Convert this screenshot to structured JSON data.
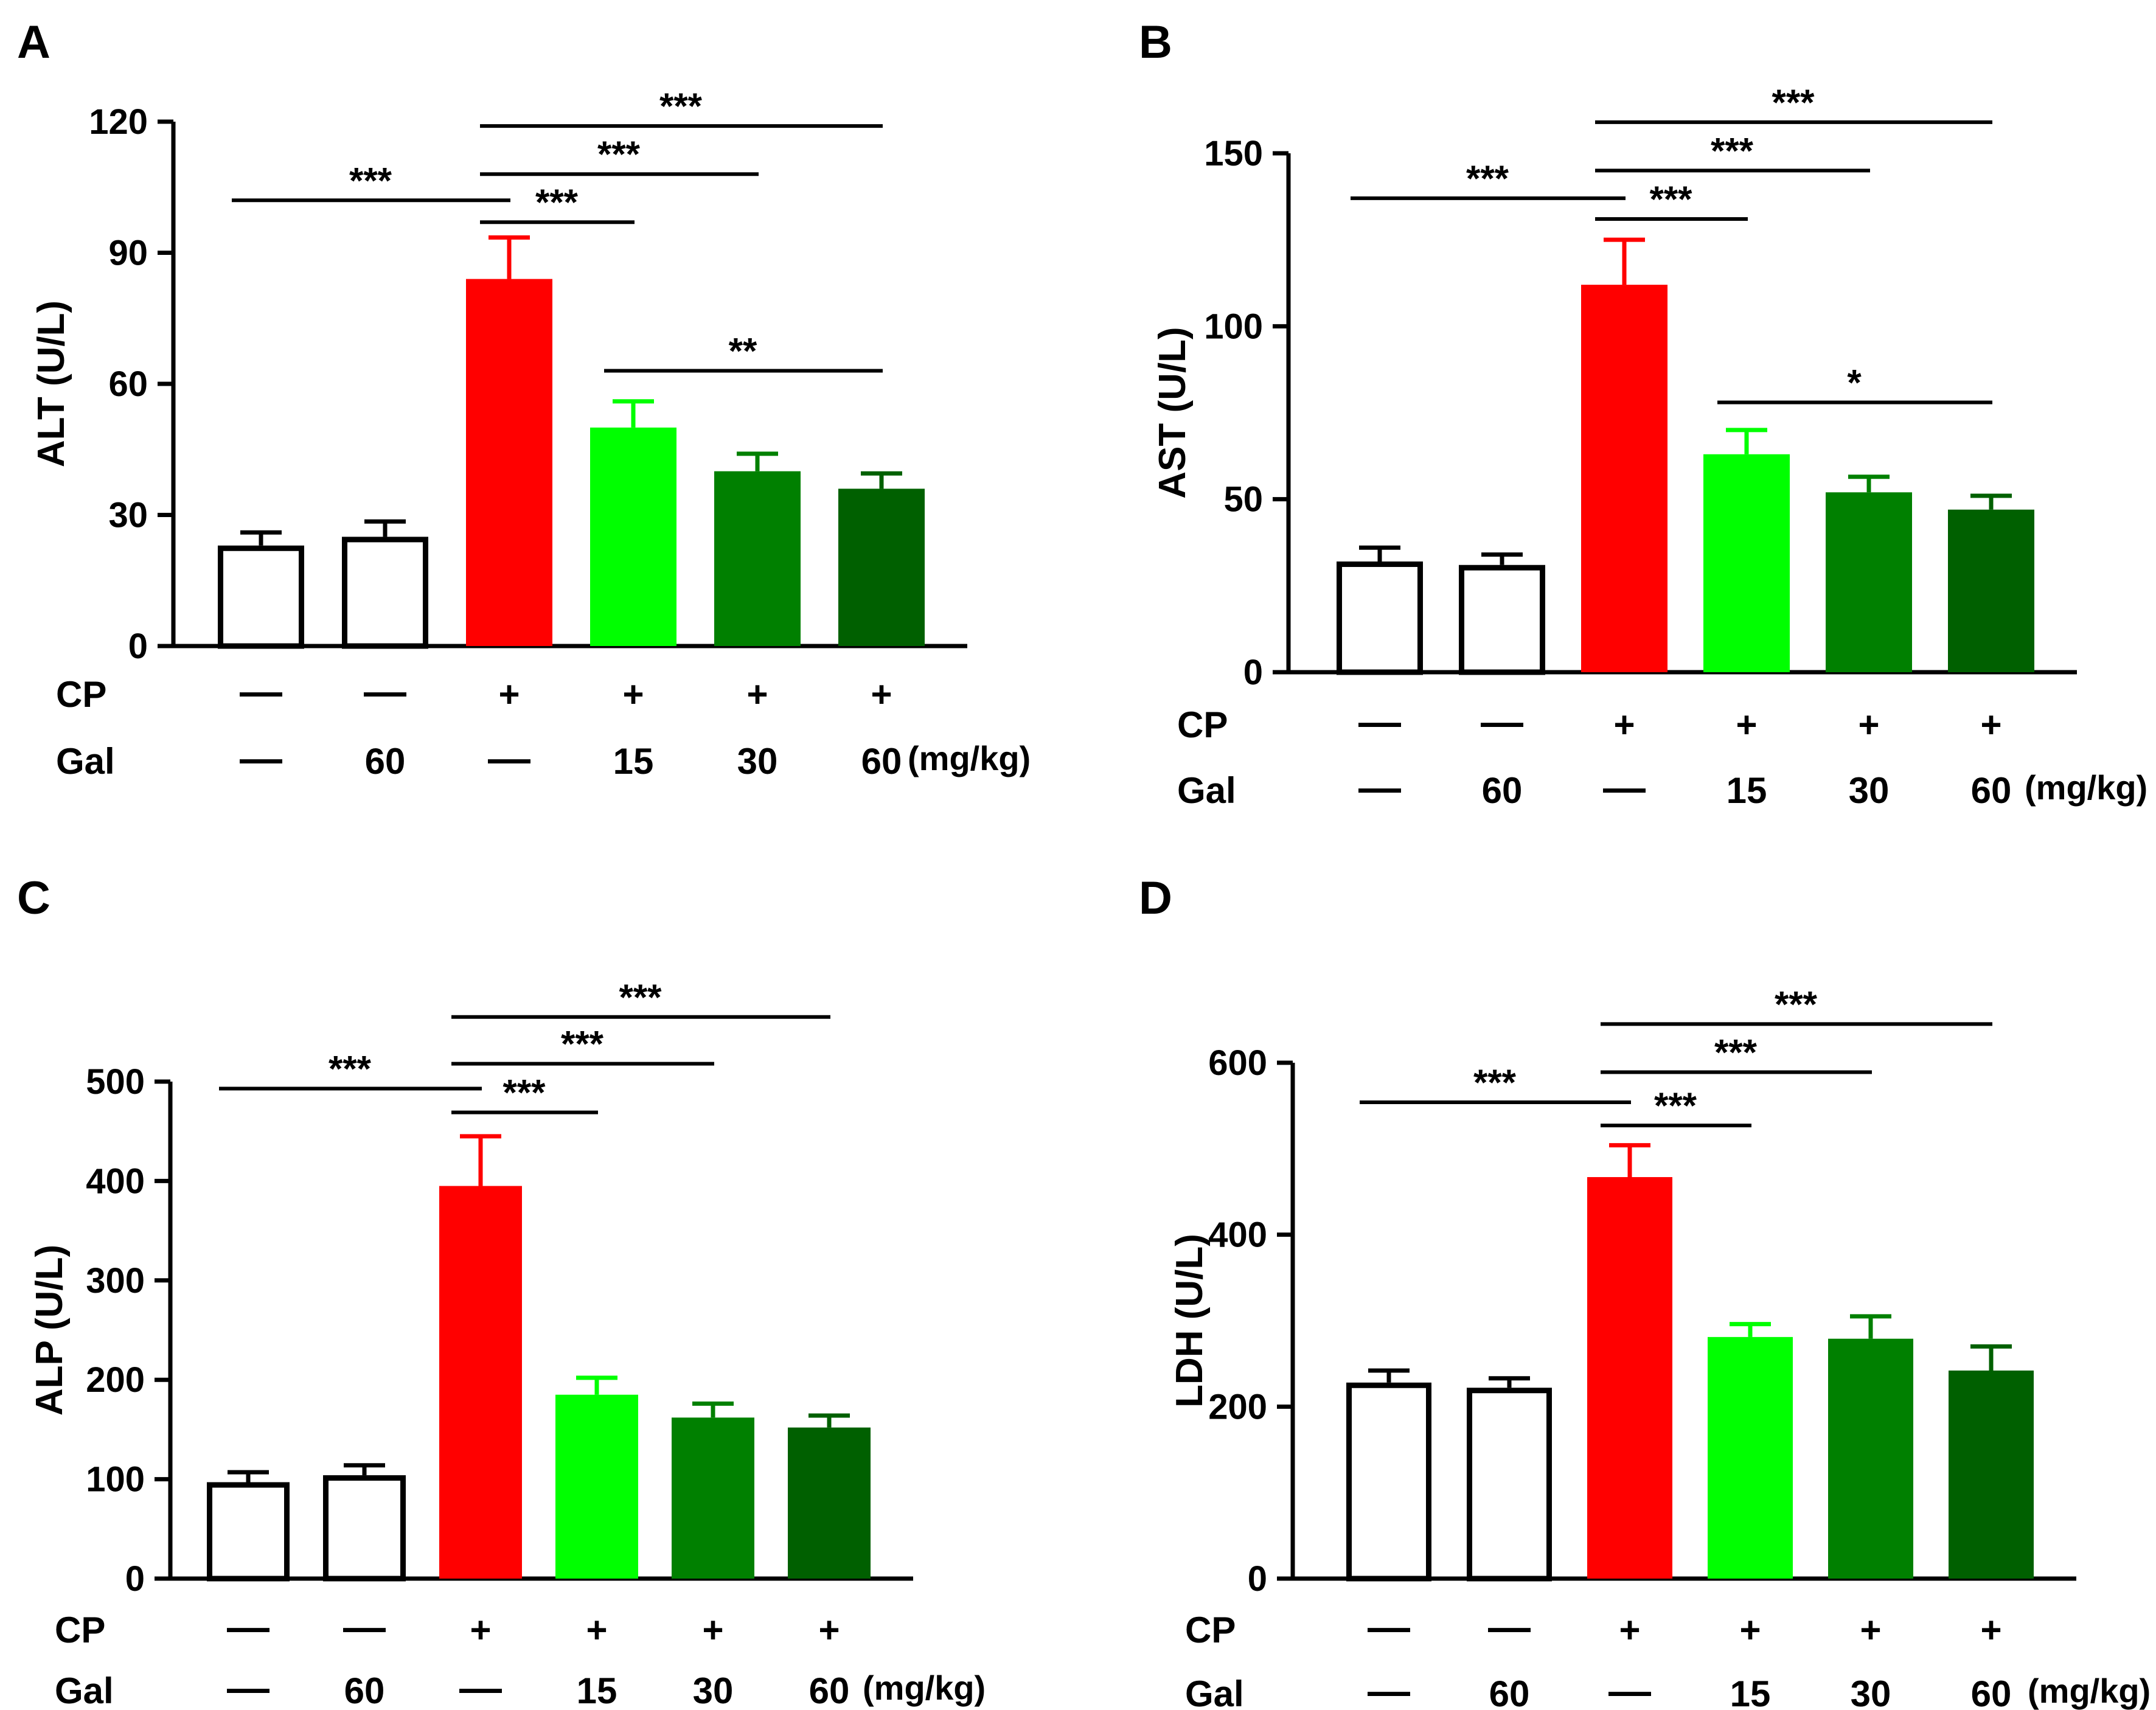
{
  "chart_data": [
    {
      "type": "bar",
      "panel_label": "A",
      "ylabel": "ALT (U/L)",
      "ylim": [
        0,
        120
      ],
      "yticks": [
        0,
        30,
        60,
        90,
        120
      ],
      "values": [
        23,
        25,
        84,
        50,
        40,
        36
      ],
      "errors": [
        3,
        3.5,
        9.5,
        6,
        4,
        3.5
      ],
      "colors": [
        "#ffffff",
        "#ffffff",
        "#ff0000",
        "#00ff00",
        "#008000",
        "#006000"
      ],
      "outlined": [
        true,
        true,
        false,
        false,
        false,
        false
      ],
      "cp_row_label": "CP",
      "cp_row": [
        "—",
        "—",
        "+",
        "+",
        "+",
        "+"
      ],
      "gal_row_label": "Gal",
      "gal_row": [
        "—",
        "60",
        "—",
        "15",
        "30",
        "60"
      ],
      "unit_label": "(mg/kg)",
      "significance": [
        {
          "from": 0,
          "to": 2,
          "y": 102,
          "label": "***"
        },
        {
          "from": 2,
          "to": 3,
          "y": 97,
          "label": "***"
        },
        {
          "from": 2,
          "to": 4,
          "y": 108,
          "label": "***"
        },
        {
          "from": 2,
          "to": 5,
          "y": 119,
          "label": "***"
        },
        {
          "from": 3,
          "to": 5,
          "y": 63,
          "label": "**"
        }
      ]
    },
    {
      "type": "bar",
      "panel_label": "B",
      "ylabel": "AST (U/L)",
      "ylim": [
        0,
        150
      ],
      "yticks": [
        0,
        50,
        100,
        150
      ],
      "values": [
        32,
        31,
        112,
        63,
        52,
        47
      ],
      "errors": [
        4,
        3,
        13,
        7,
        4.5,
        4
      ],
      "colors": [
        "#ffffff",
        "#ffffff",
        "#ff0000",
        "#00ff00",
        "#008000",
        "#006000"
      ],
      "outlined": [
        true,
        true,
        false,
        false,
        false,
        false
      ],
      "cp_row_label": "CP",
      "cp_row": [
        "—",
        "—",
        "+",
        "+",
        "+",
        "+"
      ],
      "gal_row_label": "Gal",
      "gal_row": [
        "—",
        "60",
        "—",
        "15",
        "30",
        "60"
      ],
      "unit_label": "(mg/kg)",
      "significance": [
        {
          "from": 0,
          "to": 2,
          "y": 137,
          "label": "***"
        },
        {
          "from": 2,
          "to": 3,
          "y": 131,
          "label": "***"
        },
        {
          "from": 2,
          "to": 4,
          "y": 145,
          "label": "***"
        },
        {
          "from": 2,
          "to": 5,
          "y": 159,
          "label": "***"
        },
        {
          "from": 3,
          "to": 5,
          "y": 78,
          "label": "*"
        }
      ]
    },
    {
      "type": "bar",
      "panel_label": "C",
      "ylabel": "ALP (U/L)",
      "ylim": [
        0,
        500
      ],
      "yticks": [
        0,
        100,
        200,
        300,
        400,
        500
      ],
      "values": [
        97,
        104,
        395,
        185,
        162,
        152
      ],
      "errors": [
        10,
        10,
        50,
        17,
        14,
        12
      ],
      "colors": [
        "#ffffff",
        "#ffffff",
        "#ff0000",
        "#00ff00",
        "#008000",
        "#006000"
      ],
      "outlined": [
        true,
        true,
        false,
        false,
        false,
        false
      ],
      "cp_row_label": "CP",
      "cp_row": [
        "—",
        "—",
        "+",
        "+",
        "+",
        "+"
      ],
      "gal_row_label": "Gal",
      "gal_row": [
        "—",
        "60",
        "—",
        "15",
        "30",
        "60"
      ],
      "unit_label": "(mg/kg)",
      "significance": [
        {
          "from": 0,
          "to": 2,
          "y": 493,
          "label": "***"
        },
        {
          "from": 2,
          "to": 3,
          "y": 469,
          "label": "***"
        },
        {
          "from": 2,
          "to": 4,
          "y": 518,
          "label": "***"
        },
        {
          "from": 2,
          "to": 5,
          "y": 565,
          "label": "***"
        }
      ]
    },
    {
      "type": "bar",
      "panel_label": "D",
      "ylabel": "LDH (U/L)",
      "ylim": [
        0,
        600
      ],
      "yticks": [
        0,
        200,
        400,
        600
      ],
      "values": [
        228,
        222,
        467,
        281,
        279,
        242
      ],
      "errors": [
        14,
        11,
        37,
        15,
        26,
        28
      ],
      "colors": [
        "#ffffff",
        "#ffffff",
        "#ff0000",
        "#00ff00",
        "#008000",
        "#006000"
      ],
      "outlined": [
        true,
        true,
        false,
        false,
        false,
        false
      ],
      "cp_row_label": "CP",
      "cp_row": [
        "—",
        "—",
        "+",
        "+",
        "+",
        "+"
      ],
      "gal_row_label": "Gal",
      "gal_row": [
        "—",
        "60",
        "—",
        "15",
        "30",
        "60"
      ],
      "unit_label": "(mg/kg)",
      "significance": [
        {
          "from": 0,
          "to": 2,
          "y": 554,
          "label": "***"
        },
        {
          "from": 2,
          "to": 3,
          "y": 527,
          "label": "***"
        },
        {
          "from": 2,
          "to": 4,
          "y": 589,
          "label": "***"
        },
        {
          "from": 2,
          "to": 5,
          "y": 645,
          "label": "***"
        }
      ]
    }
  ]
}
